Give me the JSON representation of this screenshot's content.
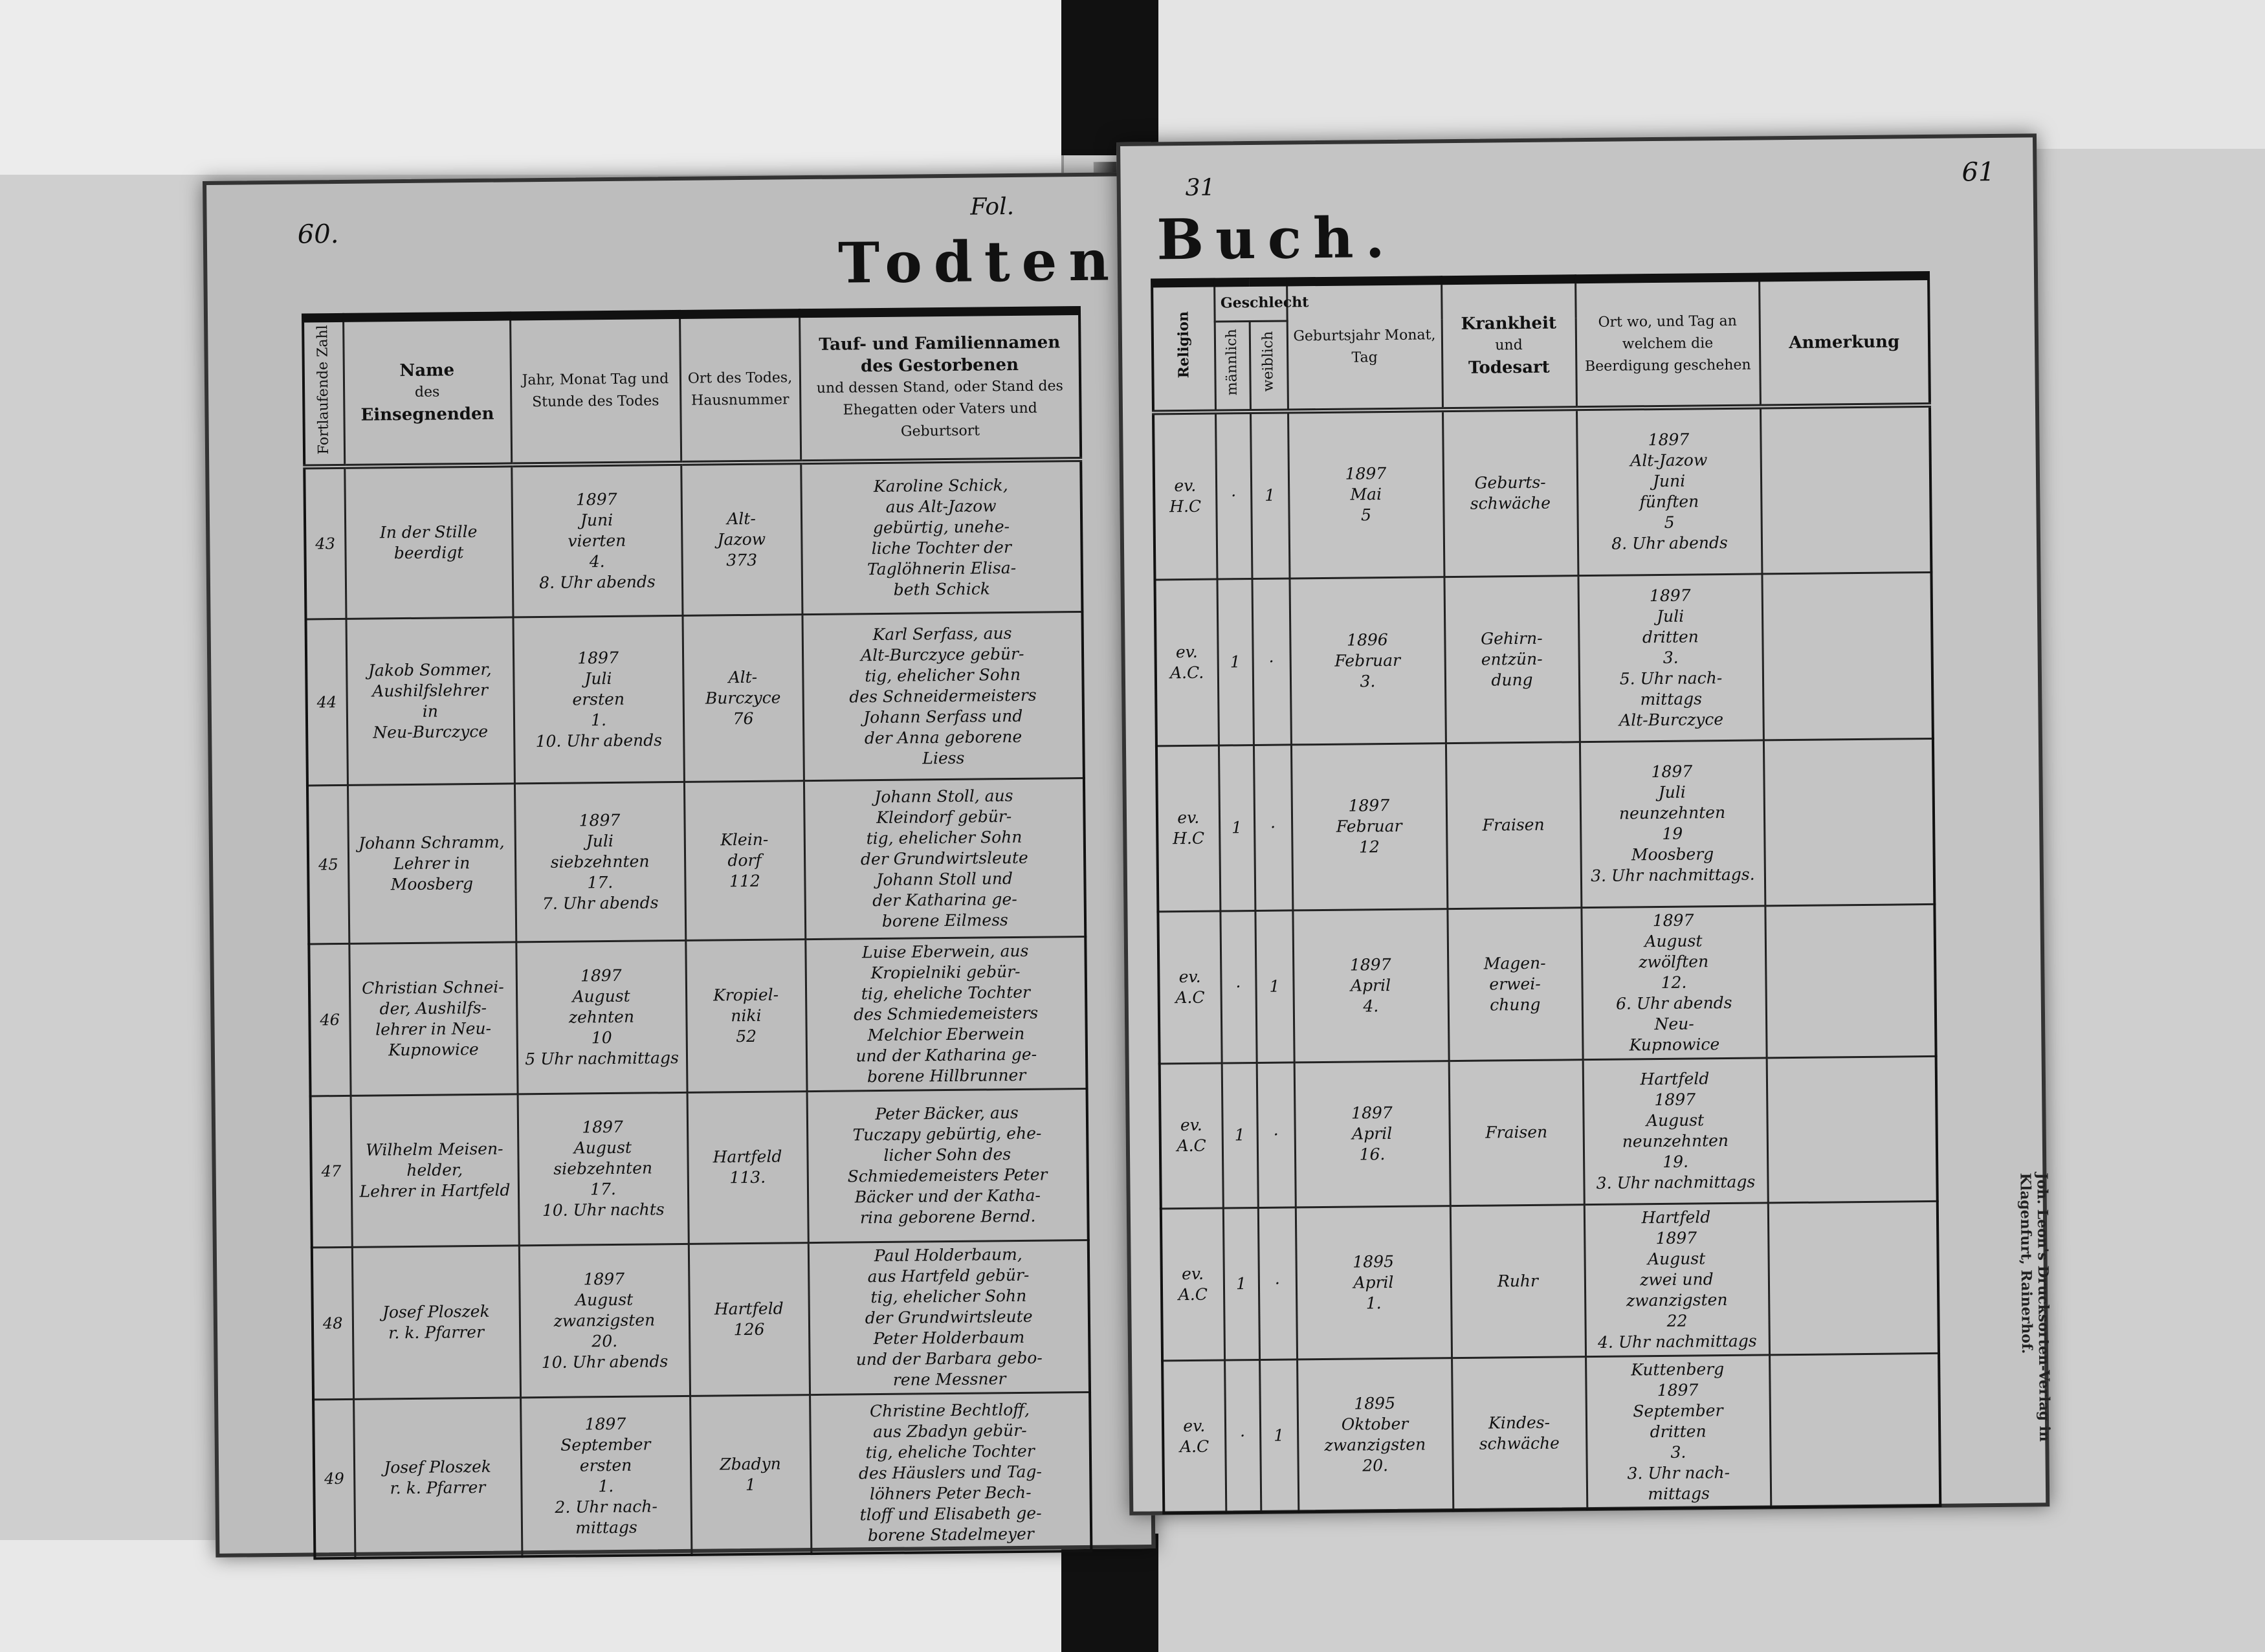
{
  "left_page": {
    "page_number": "60.",
    "folio": "Fol.",
    "title": "Todten-",
    "headers": {
      "number": "Fortlaufende Zahl",
      "officiant": [
        "Name",
        "des",
        "Einsegnenden"
      ],
      "date": "Jahr, Monat Tag und Stunde des Todes",
      "place": "Ort des Todes, Hausnummer",
      "name_title": "Tauf- und Familiennamen des Gestorbenen",
      "name_sub": "und dessen Stand, oder Stand des Ehegatten oder Vaters und Geburtsort"
    },
    "rows": [
      {
        "number": "43",
        "officiant": "In der Stille\nbeerdigt",
        "date": "1897\nJuni\nvierten\n4.\n8. Uhr abends",
        "place": "Alt-\nJazow\n373",
        "deceased": "Karoline Schick,\naus Alt-Jazow\ngebürtig, unehe-\nliche Tochter der\nTaglöhnerin Elisa-\nbeth Schick"
      },
      {
        "number": "44",
        "officiant": "Jakob Sommer,\nAushilfslehrer\nin\nNeu-Burczyce",
        "date": "1897\nJuli\nersten\n1.\n10. Uhr abends",
        "place": "Alt-\nBurczyce\n76",
        "deceased": "Karl Serfass, aus\nAlt-Burczyce gebür-\ntig, ehelicher Sohn\ndes Schneidermeisters\nJohann Serfass und\nder Anna geborene\nLiess"
      },
      {
        "number": "45",
        "officiant": "Johann Schramm,\nLehrer in\nMoosberg",
        "date": "1897\nJuli\nsiebzehnten\n17.\n7. Uhr abends",
        "place": "Klein-\ndorf\n112",
        "deceased": "Johann Stoll, aus\nKleindorf gebür-\ntig, ehelicher Sohn\nder Grundwirtsleute\nJohann Stoll und\nder Katharina ge-\nborene Eilmess"
      },
      {
        "number": "46",
        "officiant": "Christian Schnei-\nder, Aushilfs-\nlehrer in Neu-\nKupnowice",
        "date": "1897\nAugust\nzehnten\n10\n5 Uhr nachmittags",
        "place": "Kropiel-\nniki\n52",
        "deceased": "Luise Eberwein, aus\nKropielniki gebür-\ntig, eheliche Tochter\ndes Schmiedemeisters\nMelchior Eberwein\nund der Katharina ge-\nborene Hillbrunner"
      },
      {
        "number": "47",
        "officiant": "Wilhelm Meisen-\nhelder,\nLehrer in Hartfeld",
        "date": "1897\nAugust\nsiebzehnten\n17.\n10. Uhr nachts",
        "place": "Hartfeld\n113.",
        "deceased": "Peter Bäcker, aus\nTuczapy gebürtig, ehe-\nlicher Sohn des\nSchmiedemeisters Peter\nBäcker und der Katha-\nrina geborene Bernd."
      },
      {
        "number": "48",
        "officiant": "Josef Ploszek\nr. k. Pfarrer",
        "date": "1897\nAugust\nzwanzigsten\n20.\n10. Uhr abends",
        "place": "Hartfeld\n126",
        "deceased": "Paul Holderbaum,\naus Hartfeld gebür-\ntig, ehelicher Sohn\nder Grundwirtsleute\nPeter Holderbaum\nund der Barbara gebo-\nrene Messner"
      },
      {
        "number": "49",
        "officiant": "Josef Ploszek\nr. k. Pfarrer",
        "date": "1897\nSeptember\nersten\n1.\n2. Uhr nach-\nmittags",
        "place": "Zbadyn\n1",
        "deceased": "Christine Bechtloff,\naus Zbadyn gebür-\ntig, eheliche Tochter\ndes Häuslers und Tag-\nlöhners Peter Bech-\ntloff und Elisabeth ge-\nborene Stadelmeyer"
      }
    ]
  },
  "right_page": {
    "page_number": "61",
    "folio": "31",
    "title": "Buch.",
    "headers": {
      "religion": "Religion",
      "sex": "Geschlecht",
      "male": "männlich",
      "female": "weiblich",
      "birth": "Geburtsjahr Monat, Tag",
      "cause_1": "Krankheit",
      "cause_2": "und",
      "cause_3": "Todesart",
      "burial": "Ort wo, und Tag an welchem die Beerdigung geschehen",
      "remarks": "Anmerkung"
    },
    "rows": [
      {
        "religion": "ev.\nH.C",
        "male": "·",
        "female": "1",
        "birth": "1897\nMai\n5",
        "cause": "Geburts-\nschwäche",
        "burial": "1897\nAlt-Jazow\nJuni\nfünften\n5\n8. Uhr abends",
        "remarks": ""
      },
      {
        "religion": "ev.\nA.C.",
        "male": "1",
        "female": "·",
        "birth": "1896\nFebruar\n3.",
        "cause": "Gehirn-\nentzün-\ndung",
        "burial": "1897\nJuli\ndritten\n3.\n5. Uhr nach-\nmittags\nAlt-Burczyce",
        "remarks": ""
      },
      {
        "religion": "ev.\nH.C",
        "male": "1",
        "female": "·",
        "birth": "1897\nFebruar\n12",
        "cause": "Fraisen",
        "burial": "1897\nJuli\nneunzehnten\n19\nMoosberg\n3. Uhr nachmittags.",
        "remarks": ""
      },
      {
        "religion": "ev.\nA.C",
        "male": "·",
        "female": "1",
        "birth": "1897\nApril\n4.",
        "cause": "Magen-\nerwei-\nchung",
        "burial": "1897\nAugust\nzwölften\n12.\n6. Uhr abends\nNeu-\nKupnowice",
        "remarks": ""
      },
      {
        "religion": "ev.\nA.C",
        "male": "1",
        "female": "·",
        "birth": "1897\nApril\n16.",
        "cause": "Fraisen",
        "burial": "Hartfeld\n1897\nAugust\nneunzehnten\n19.\n3. Uhr nachmittags",
        "remarks": ""
      },
      {
        "religion": "ev.\nA.C",
        "male": "1",
        "female": "·",
        "birth": "1895\nApril\n1.",
        "cause": "Ruhr",
        "burial": "Hartfeld\n1897\nAugust\nzwei und\nzwanzigsten\n22\n4. Uhr nachmittags",
        "remarks": ""
      },
      {
        "religion": "ev.\nA.C",
        "male": "·",
        "female": "1",
        "birth": "1895\nOktober\nzwanzigsten\n20.",
        "cause": "Kindes-\nschwäche",
        "burial": "Kuttenberg\n1897\nSeptember\ndritten\n3.\n3. Uhr nach-\nmittags",
        "remarks": ""
      }
    ],
    "imprint": "Joh. Leon's Drucksorten-Verlag in Klagenfurt, Rainerhof."
  }
}
